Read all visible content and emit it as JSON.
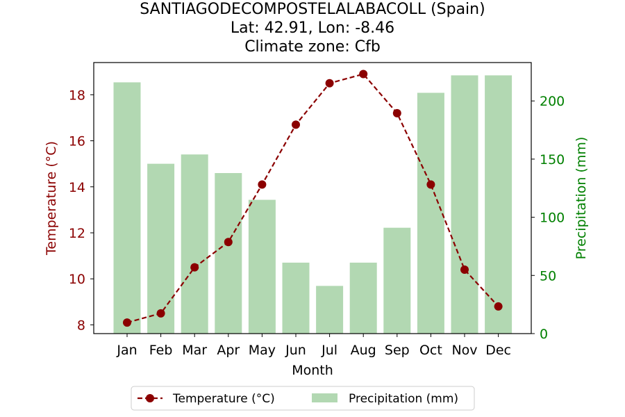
{
  "title": {
    "line1": "SANTIAGODECOMPOSTELALABACOLL (Spain)",
    "line2": "Lat: 42.91, Lon: -8.46",
    "line3": "Climate zone: Cfb"
  },
  "colors": {
    "temperature": "#8b0000",
    "precipitation_bar": "#b2d8b2",
    "precipitation_axis": "#008000",
    "axis": "#000000"
  },
  "chart_data": {
    "type": "bar+line",
    "categories": [
      "Jan",
      "Feb",
      "Mar",
      "Apr",
      "May",
      "Jun",
      "Jul",
      "Aug",
      "Sep",
      "Oct",
      "Nov",
      "Dec"
    ],
    "xlabel": "Month",
    "series": [
      {
        "name": "Temperature (°C)",
        "type": "line",
        "axis": "left",
        "style": "dashed with circle markers",
        "values": [
          8.1,
          8.5,
          10.5,
          11.6,
          14.1,
          16.7,
          18.5,
          18.9,
          17.2,
          14.1,
          10.4,
          8.8
        ]
      },
      {
        "name": "Precipitation (mm)",
        "type": "bar",
        "axis": "right",
        "values": [
          216,
          146,
          154,
          138,
          115,
          61,
          41,
          61,
          91,
          207,
          222,
          222
        ]
      }
    ],
    "y_left": {
      "label": "Temperature (°C)",
      "ticks": [
        8,
        10,
        12,
        14,
        16,
        18
      ],
      "lim": [
        7.62,
        19.4
      ]
    },
    "y_right": {
      "label": "Precipitation (mm)",
      "ticks": [
        0,
        50,
        100,
        150,
        200
      ],
      "lim": [
        0,
        233
      ]
    },
    "grid": false,
    "legend": {
      "placement": "bottom-center",
      "entries": [
        "Temperature (°C)",
        "Precipitation (mm)"
      ]
    }
  }
}
